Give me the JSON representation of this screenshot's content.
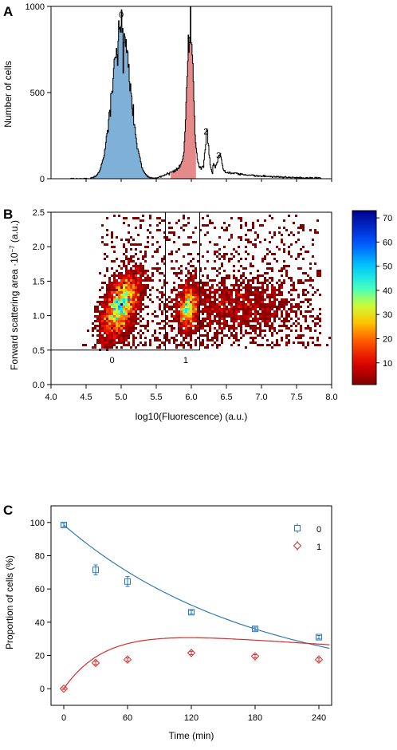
{
  "chart_data": [
    {
      "panel": "A",
      "type": "area",
      "ylabel": "Number of cells",
      "xlim": [
        4.0,
        8.0
      ],
      "ylim": [
        0,
        1000
      ],
      "yticks": [
        0,
        500,
        1000
      ],
      "peaks": [
        {
          "label": "0",
          "x": 5.0,
          "y": 870,
          "fill": "#7fb0d8"
        },
        {
          "label": "1",
          "x": 5.98,
          "y": 760,
          "fill": "#e58a8a"
        },
        {
          "label": "2",
          "x": 6.22,
          "y": 230
        },
        {
          "label": "3",
          "x": 6.4,
          "y": 90
        }
      ],
      "background_hump": {
        "x": 5.75,
        "y": 40
      }
    },
    {
      "panel": "B",
      "type": "heatmap",
      "xlabel": "log10(Fluorescence) (a.u.)",
      "ylabel": "Forward scattering area ·10",
      "ylabel_exp": "−7",
      "ylabel_unit": " (a.u.)",
      "xlim": [
        4.0,
        8.0
      ],
      "ylim": [
        0.0,
        2.5
      ],
      "xticks": [
        "4.0",
        "4.5",
        "5.0",
        "5.5",
        "6.0",
        "6.5",
        "7.0",
        "7.5",
        "8.0"
      ],
      "yticks": [
        "0.0",
        "0.5",
        "1.0",
        "1.5",
        "2.0",
        "2.5"
      ],
      "gates": {
        "y_min": 0.5,
        "x_lines": [
          5.63,
          6.12
        ],
        "labels": [
          {
            "text": "0",
            "x": 4.87
          },
          {
            "text": "1",
            "x": 5.92
          }
        ]
      },
      "clusters": [
        {
          "cx": 5.0,
          "cy": 1.15,
          "sx": 0.15,
          "sy": 0.26,
          "rho": 0.55,
          "n": 2600,
          "peak": 73
        },
        {
          "cx": 5.95,
          "cy": 1.12,
          "sx": 0.07,
          "sy": 0.18,
          "rho": 0.15,
          "n": 900,
          "peak": 28
        },
        {
          "cx": 6.6,
          "cy": 1.15,
          "sx": 0.5,
          "sy": 0.2,
          "rho": 0.0,
          "n": 1300,
          "peak": 8
        }
      ],
      "colorbar": {
        "min": 1,
        "max": 73,
        "ticks": [
          "10",
          "20",
          "30",
          "40",
          "50",
          "60",
          "70"
        ]
      }
    },
    {
      "panel": "C",
      "type": "scatter",
      "xlabel": "Time (min)",
      "ylabel": "Proportion of cells (%)",
      "xlim": [
        -12,
        252
      ],
      "ylim": [
        -10,
        110
      ],
      "xticks": [
        "0",
        "60",
        "120",
        "180",
        "240"
      ],
      "yticks": [
        "0",
        "20",
        "40",
        "60",
        "80",
        "100"
      ],
      "legend": "top-right",
      "series": [
        {
          "name": "0",
          "color": "#2f7ab9",
          "marker": "square",
          "x": [
            0,
            30,
            60,
            120,
            180,
            240
          ],
          "y": [
            98.5,
            71.5,
            64.5,
            46,
            36,
            31
          ],
          "err": [
            1,
            3,
            3,
            1,
            1,
            1
          ],
          "fit": {
            "kind": "exp_decay",
            "a": 98.5,
            "k": 0.0056
          }
        },
        {
          "name": "1",
          "color": "#d62d2d",
          "marker": "diamond",
          "x": [
            0,
            30,
            60,
            120,
            180,
            240
          ],
          "y": [
            0,
            15.5,
            17.5,
            21.5,
            19.5,
            17.5
          ],
          "err": [
            0.5,
            1,
            1,
            1,
            1,
            1
          ],
          "fit": {
            "kind": "rise_fall",
            "a": 37,
            "k1": 0.025,
            "k2": 0.0016
          }
        }
      ]
    }
  ],
  "panel_labels": [
    "A",
    "B",
    "C"
  ]
}
